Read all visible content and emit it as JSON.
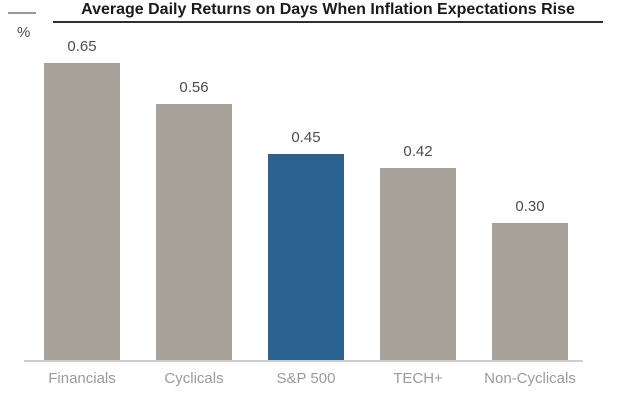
{
  "chart_data": {
    "type": "bar",
    "title": "Average Daily Returns on Days When Inflation Expectations Rise",
    "ylabel": "%",
    "xlabel": "",
    "categories": [
      "Financials",
      "Cyclicals",
      "S&P 500",
      "TECH+",
      "Non-Cyclicals"
    ],
    "values": [
      0.65,
      0.56,
      0.45,
      0.42,
      0.3
    ],
    "value_labels": [
      "0.65",
      "0.56",
      "0.45",
      "0.42",
      "0.30"
    ],
    "ylim": [
      0,
      0.7
    ],
    "grid": false,
    "legend": "none",
    "axis_ticks": "none",
    "highlight_index": 2,
    "colors": {
      "bar_default": "#a8a19a",
      "bar_highlight": "#2a6391",
      "title_text": "#1a1a1a",
      "title_rule": "#2e2e2e",
      "value_label": "#4d4d4d",
      "category_label": "#9b9b9b",
      "axis_line": "#cfcfcf",
      "unit_tick": "#999999",
      "background": "#ffffff"
    }
  }
}
